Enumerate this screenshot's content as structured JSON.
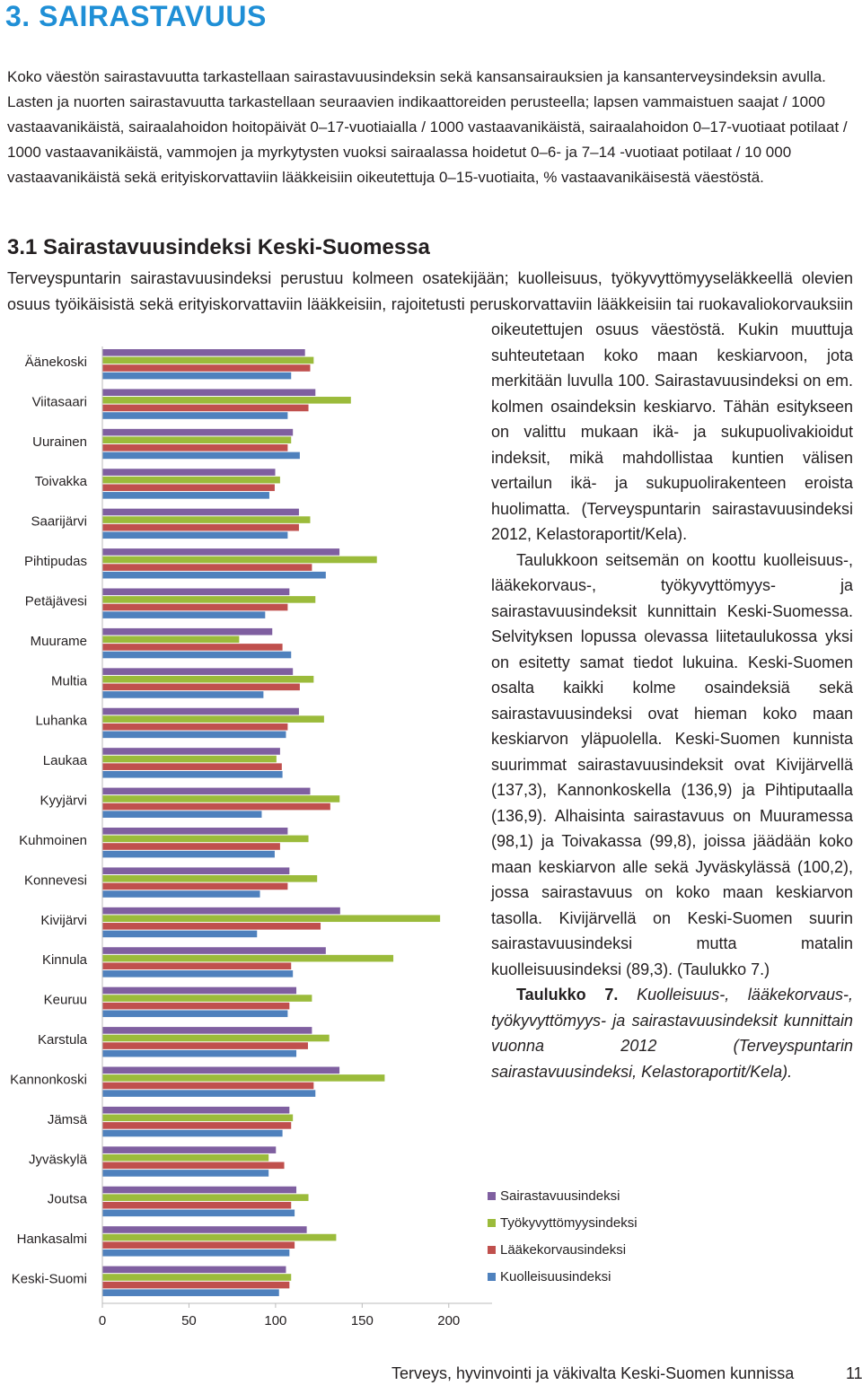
{
  "header": {
    "title": "3. SAIRASTAVUUS"
  },
  "intro": "Koko väestön sairastavuutta tarkastellaan sairastavuusindeksin sekä kansansairauksien ja kansanterveysindeksin avulla. Lasten ja nuorten sairastavuutta tarkastellaan seuraavien indikaattoreiden perusteella; lapsen vammaistuen saajat / 1000 vastaavanikäistä, sairaalahoidon hoitopäivät 0–17-vuotiaialla / 1000 vastaavanikäistä, sairaalahoidon 0–17-vuotiaat potilaat / 1000 vastaavanikäistä, vammojen ja myrkytysten vuoksi sairaalassa hoidetut 0–6- ja 7–14 -vuotiaat potilaat / 10 000 vastaavanikäistä sekä erityiskorvattaviin lääkkeisiin oikeutettuja 0–15-vuotiaita, % vastaavanikäisestä väestöstä.",
  "section": {
    "title": "3.1 Sairastavuusindeksi Keski-Suomessa",
    "paragraphs": [
      "Terveyspuntarin sairastavuusindeksi perustuu kolmeen osatekijään; kuolleisuus, työkyvyttömyyseläkkeellä olevien osuus työikäisistä sekä erityiskorvattaviin lääkkeisiin, rajoitetusti peruskorvattaviin lääkkeisiin tai ruokavaliokorvauksiin oikeutettujen osuus väestöstä. Kukin muuttuja suhteutetaan koko maan keskiarvoon, jota merkitään luvulla 100. Sairastavuusindeksi on em. kolmen osaindeksin keskiarvo. Tähän esitykseen on valittu mukaan ikä- ja sukupuolivakioidut indeksit, mikä mahdollistaa kuntien välisen vertailun ikä- ja sukupuolirakenteen eroista huolimatta. (Terveyspuntarin sairastavuusindeksi 2012, Kelastoraportit/Kela).",
      "Taulukkoon seitsemän on koottu kuolleisuus-, lääkekorvaus-, työkyvyttömyys- ja sairastavuusindeksit kunnittain Keski-Suomessa. Selvityksen lopussa olevassa liitetaulukossa yksi on esitetty samat tiedot lukuina. Keski-Suomen osalta kaikki kolme osaindeksiä sekä sairastavuusindeksi ovat hieman koko maan keskiarvon yläpuolella. Keski-Suomen kunnista suurimmat sairastavuusindeksit ovat Kivijärvellä (137,3), Kannonkoskella (136,9) ja Pihtiputaalla (136,9). Alhaisinta sairastavuus on Muuramessa (98,1) ja Toivakassa (99,8), joissa jäädään koko maan keskiarvon alle sekä Jyväskylässä (100,2), jossa sairastavuus on koko maan keskiarvon tasolla. Kivijärvellä on Keski-Suomen suurin sairastavuusindeksi mutta matalin kuolleisuusindeksi (89,3). (Taulukko 7.)"
    ]
  },
  "caption": {
    "label": "Taulukko 7.",
    "text": "Kuolleisuus-, lääkekorvaus-, työkyvyttömyys- ja sairastavuusindeksit kunnittain vuonna 2012 (Terveyspuntarin sairastavuusindeksi, Kelastoraportit/Kela)."
  },
  "chart_data": {
    "type": "hbar",
    "categories": [
      "Äänekoski",
      "Viitasaari",
      "Uurainen",
      "Toivakka",
      "Saarijärvi",
      "Pihtipudas",
      "Petäjävesi",
      "Muurame",
      "Multia",
      "Luhanka",
      "Laukaa",
      "Kyyjärvi",
      "Kuhmoinen",
      "Konnevesi",
      "Kivijärvi",
      "Kinnula",
      "Keuruu",
      "Karstula",
      "Kannonkoski",
      "Jämsä",
      "Jyväskylä",
      "Joutsa",
      "Hankasalmi",
      "Keski-Suomi"
    ],
    "series": [
      {
        "name": "Sairastavuusindeksi",
        "color": "#7f5fa0",
        "values": [
          117,
          123,
          110,
          99.8,
          113.5,
          136.9,
          108,
          98.1,
          110,
          113.5,
          102.6,
          120,
          107,
          108,
          137.3,
          129,
          112,
          121,
          136.9,
          108,
          100.2,
          112,
          118,
          106
        ]
      },
      {
        "name": "Työkyvyttömyysindeksi",
        "color": "#9bbb3b",
        "values": [
          122,
          143.5,
          109,
          102.6,
          120,
          158.5,
          123,
          79,
          122,
          128,
          100.5,
          137,
          119,
          124,
          195,
          168,
          121,
          131,
          163,
          110,
          96,
          119,
          135,
          109
        ]
      },
      {
        "name": "Lääkekorvausindeksi",
        "color": "#c0504d",
        "values": [
          120,
          119,
          107,
          99.5,
          113.5,
          121,
          107,
          104,
          114,
          107,
          103.6,
          131.6,
          102.6,
          107,
          126,
          109,
          108,
          118.7,
          122,
          109,
          105,
          109,
          111,
          108
        ]
      },
      {
        "name": "Kuolleisuusindeksi",
        "color": "#4f81bd",
        "values": [
          109,
          107,
          114,
          96.4,
          107,
          129,
          94,
          109,
          93,
          106,
          104,
          92,
          99.5,
          91,
          89.3,
          110,
          107,
          112,
          123,
          104,
          96,
          111,
          108,
          102
        ]
      }
    ],
    "xlim": [
      0,
      225
    ],
    "xticks": [
      0,
      50,
      100,
      150,
      200
    ]
  },
  "footer": {
    "text": "Terveys, hyvinvointi ja väkivalta Keski-Suomen kunnissa",
    "page": "11"
  }
}
